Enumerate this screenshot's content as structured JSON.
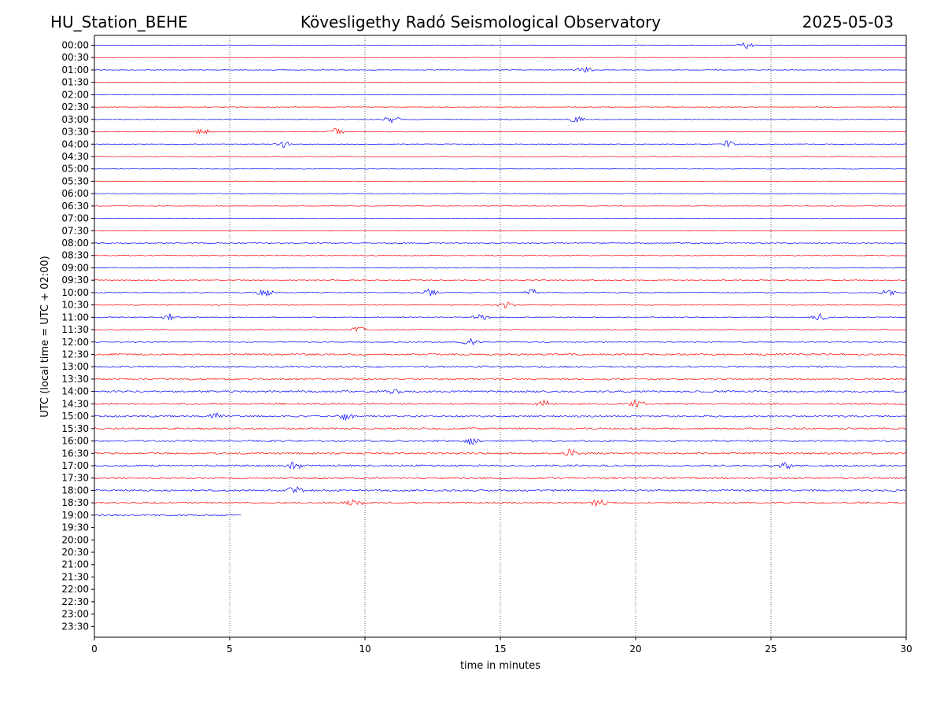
{
  "header": {
    "station": "HU_Station_BEHE",
    "observatory": "Kövesligethy Radó Seismological Observatory",
    "date": "2025-05-03"
  },
  "chart_data": {
    "type": "line",
    "title": "Kövesligethy Radó Seismological Observatory",
    "xlabel": "time in minutes",
    "ylabel": "UTC (local time = UTC + 02:00)",
    "xlim": [
      0,
      30
    ],
    "x_ticks": [
      "0",
      "5",
      "10",
      "15",
      "20",
      "25",
      "30"
    ],
    "grid_x": true,
    "row_labels": [
      "00:00",
      "00:30",
      "01:00",
      "01:30",
      "02:00",
      "02:30",
      "03:00",
      "03:30",
      "04:00",
      "04:30",
      "05:00",
      "05:30",
      "06:00",
      "06:30",
      "07:00",
      "07:30",
      "08:00",
      "08:30",
      "09:00",
      "09:30",
      "10:00",
      "10:30",
      "11:00",
      "11:30",
      "12:00",
      "12:30",
      "13:00",
      "13:30",
      "14:00",
      "14:30",
      "15:00",
      "15:30",
      "16:00",
      "16:30",
      "17:00",
      "17:30",
      "18:00",
      "18:30",
      "19:00",
      "19:30",
      "20:00",
      "20:30",
      "21:00",
      "21:30",
      "22:00",
      "22:30",
      "23:00",
      "23:30"
    ],
    "series_colors": [
      "#0000ff",
      "#ff0000"
    ],
    "traces_recorded": 39,
    "last_trace_end_minutes": 5.45,
    "events": [
      {
        "row": "00:00",
        "minute": 24.1
      },
      {
        "row": "01:00",
        "minute": 18.1
      },
      {
        "row": "03:00",
        "minute": 11.0
      },
      {
        "row": "03:00",
        "minute": 17.8
      },
      {
        "row": "03:30",
        "minute": 4.0
      },
      {
        "row": "03:30",
        "minute": 8.9
      },
      {
        "row": "04:00",
        "minute": 7.0
      },
      {
        "row": "04:00",
        "minute": 23.4
      },
      {
        "row": "10:00",
        "minute": 6.3
      },
      {
        "row": "10:00",
        "minute": 12.4
      },
      {
        "row": "10:00",
        "minute": 16.2
      },
      {
        "row": "10:00",
        "minute": 29.3
      },
      {
        "row": "10:30",
        "minute": 15.2
      },
      {
        "row": "11:00",
        "minute": 2.8
      },
      {
        "row": "11:00",
        "minute": 14.3
      },
      {
        "row": "11:00",
        "minute": 26.8
      },
      {
        "row": "11:30",
        "minute": 9.8
      },
      {
        "row": "12:00",
        "minute": 13.9
      },
      {
        "row": "14:00",
        "minute": 11.1
      },
      {
        "row": "14:30",
        "minute": 16.6
      },
      {
        "row": "14:30",
        "minute": 20.0
      },
      {
        "row": "15:00",
        "minute": 4.5
      },
      {
        "row": "15:00",
        "minute": 9.3
      },
      {
        "row": "16:00",
        "minute": 13.9
      },
      {
        "row": "16:30",
        "minute": 17.6
      },
      {
        "row": "17:00",
        "minute": 7.4
      },
      {
        "row": "17:00",
        "minute": 25.5
      },
      {
        "row": "18:00",
        "minute": 7.4
      },
      {
        "row": "18:30",
        "minute": 9.6
      },
      {
        "row": "18:30",
        "minute": 18.6
      }
    ]
  }
}
